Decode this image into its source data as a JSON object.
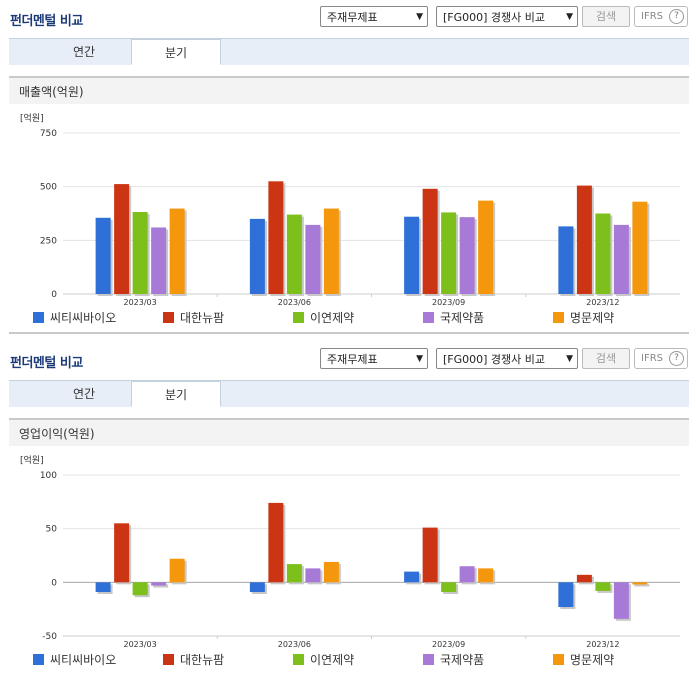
{
  "panels": [
    {
      "title": "펀더멘털 비교",
      "select1": "주재무제표",
      "select2": "[FG000] 경쟁사 비교",
      "search_label": "검색",
      "ifrs_label": "IFRS",
      "ifrs_help": "?",
      "tabs": [
        "연간",
        "분기"
      ],
      "active_tab": 1,
      "section_title": "매출액(억원)"
    },
    {
      "title": "펀더멘털 비교",
      "select1": "주재무제표",
      "select2": "[FG000] 경쟁사 비교",
      "search_label": "검색",
      "ifrs_label": "IFRS",
      "ifrs_help": "?",
      "tabs": [
        "연간",
        "분기"
      ],
      "active_tab": 1,
      "section_title": "영업이익(억원)"
    }
  ],
  "colors": [
    "#2e6fd8",
    "#cc3514",
    "#7ec01b",
    "#a87ad8",
    "#f5970c"
  ],
  "chart_data": [
    {
      "type": "bar",
      "title": "매출액(억원)",
      "unit_label": "[억원]",
      "categories": [
        "2023/03",
        "2023/06",
        "2023/09",
        "2023/12"
      ],
      "yticks": [
        0,
        250,
        500,
        750
      ],
      "ylim": [
        0,
        750
      ],
      "grid": true,
      "legend": "bottom",
      "series": [
        {
          "name": "씨티씨바이오",
          "values": [
            355,
            350,
            360,
            315
          ]
        },
        {
          "name": "대한뉴팜",
          "values": [
            512,
            525,
            490,
            505
          ]
        },
        {
          "name": "이연제약",
          "values": [
            382,
            370,
            380,
            375
          ]
        },
        {
          "name": "국제약품",
          "values": [
            310,
            322,
            358,
            322
          ]
        },
        {
          "name": "명문제약",
          "values": [
            398,
            398,
            435,
            430
          ]
        }
      ]
    },
    {
      "type": "bar",
      "title": "영업이익(억원)",
      "unit_label": "[억원]",
      "categories": [
        "2023/03",
        "2023/06",
        "2023/09",
        "2023/12"
      ],
      "yticks": [
        -50,
        0,
        50,
        100
      ],
      "ylim": [
        -50,
        100
      ],
      "grid": true,
      "legend": "bottom",
      "series": [
        {
          "name": "씨티씨바이오",
          "values": [
            -9,
            -9,
            10,
            -23
          ]
        },
        {
          "name": "대한뉴팜",
          "values": [
            55,
            74,
            51,
            7
          ]
        },
        {
          "name": "이연제약",
          "values": [
            -12,
            17,
            -9,
            -8
          ]
        },
        {
          "name": "국제약품",
          "values": [
            -3,
            13,
            15,
            -34
          ]
        },
        {
          "name": "명문제약",
          "values": [
            22,
            19,
            13,
            -2
          ]
        }
      ]
    }
  ]
}
